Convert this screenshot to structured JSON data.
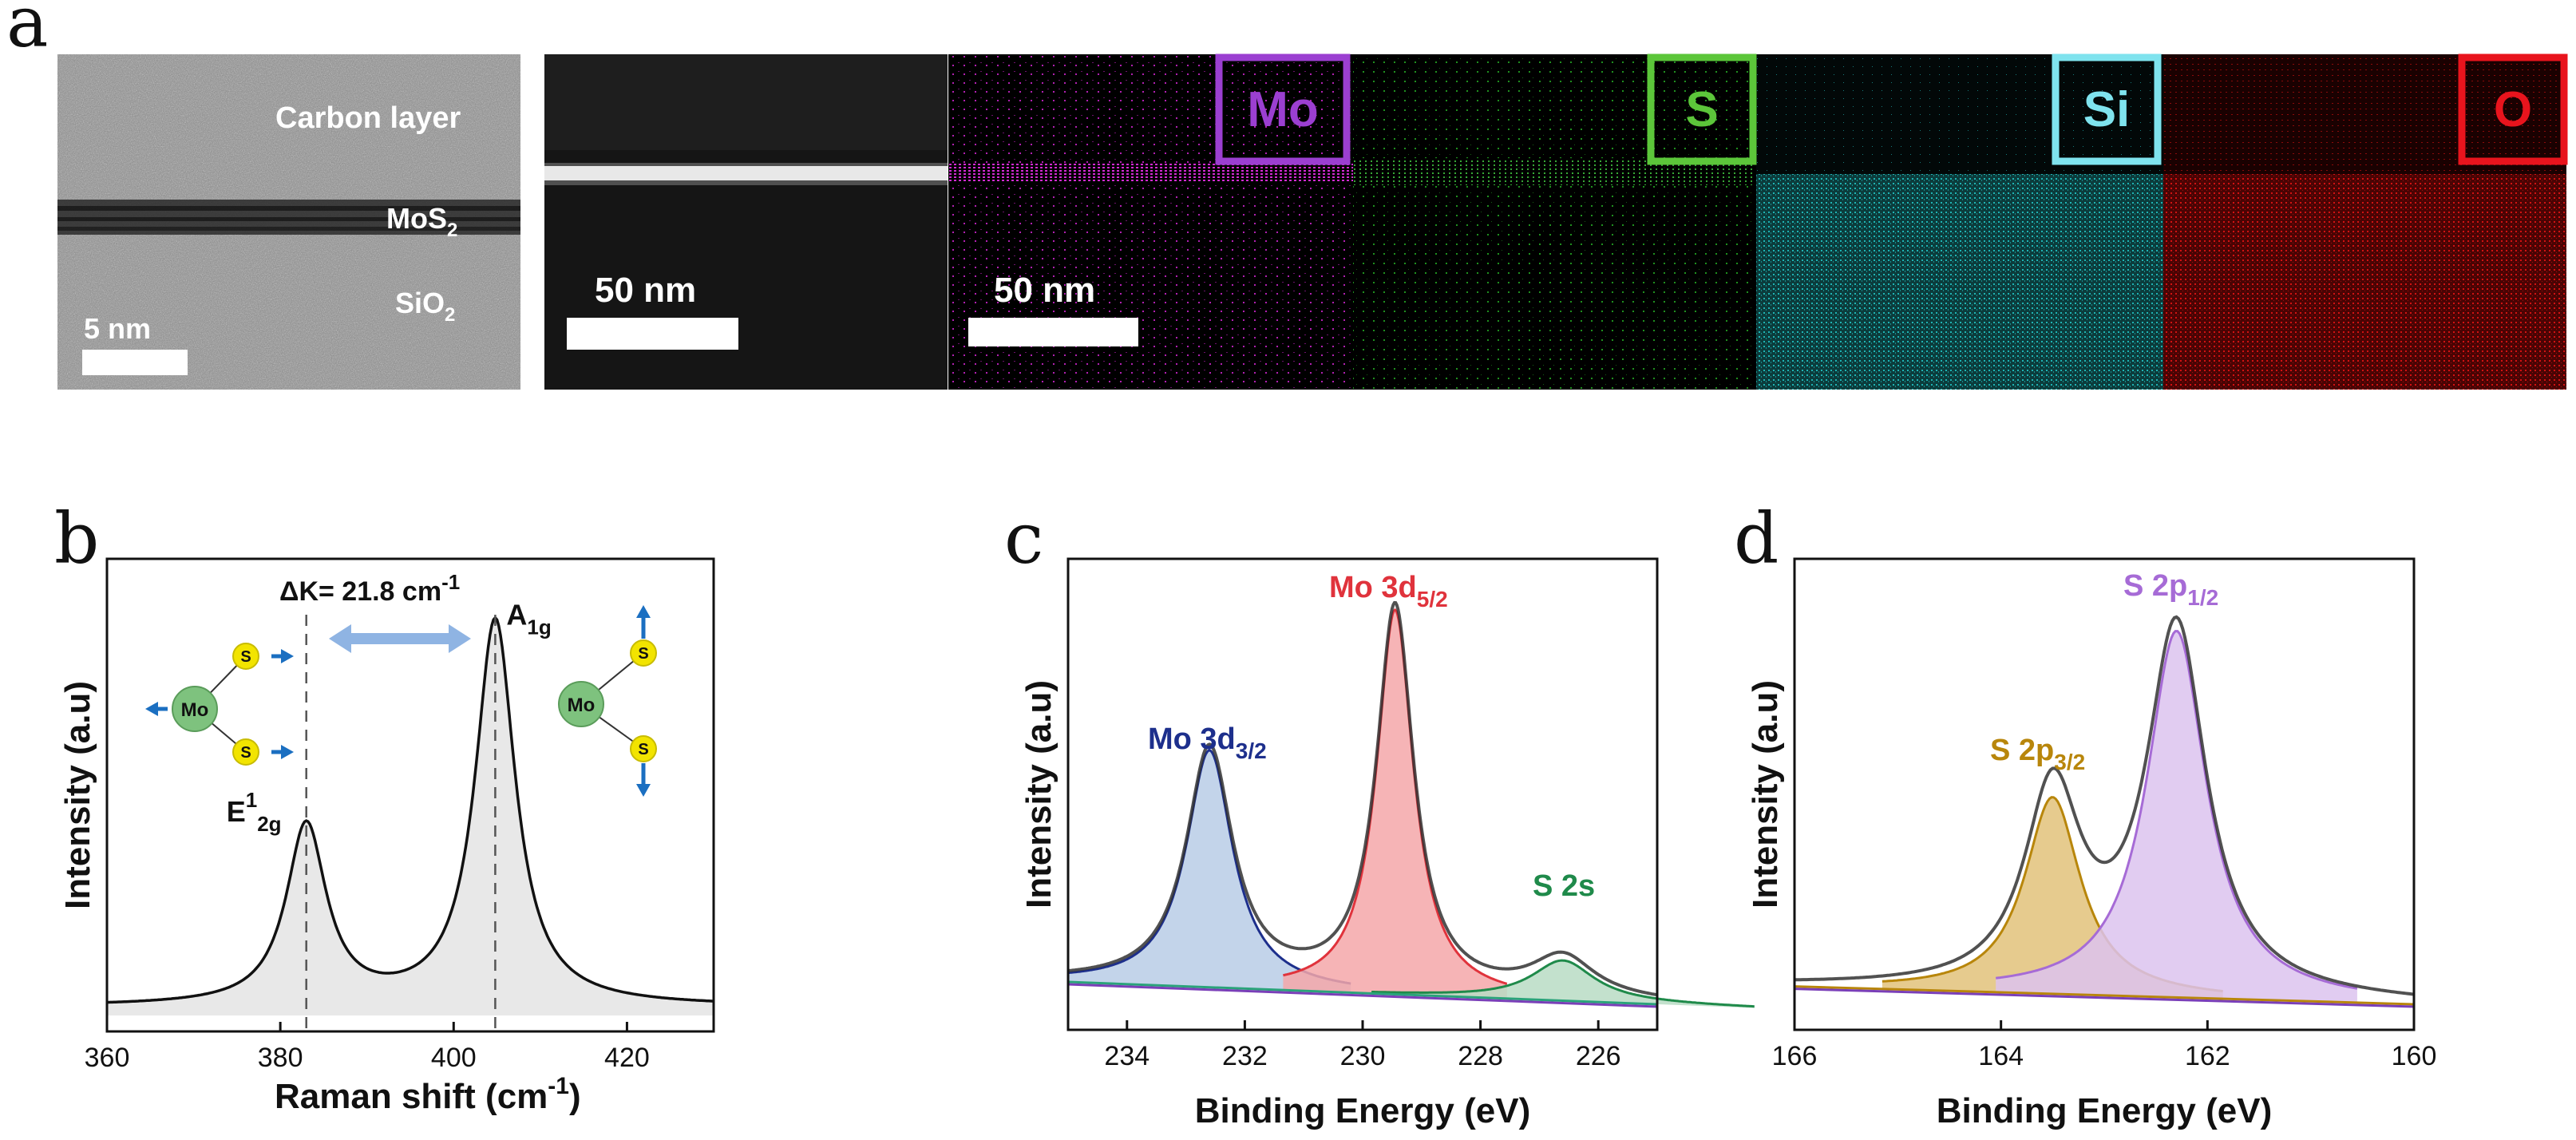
{
  "panels": {
    "a": {
      "letter": "a",
      "tem": {
        "layer_top": "Carbon layer",
        "layer_mid": "MoS",
        "layer_mid_sub": "2",
        "layer_bot": "SiO",
        "layer_bot_sub": "2",
        "scale": "5 nm"
      },
      "haadf": {
        "scale": "50 nm"
      },
      "map": {
        "scale": "50 nm"
      },
      "elements": [
        {
          "label": "Mo",
          "color": "#9b3fd1"
        },
        {
          "label": "S",
          "color": "#5cc63a"
        },
        {
          "label": "Si",
          "color": "#7fe3ee"
        },
        {
          "label": "O",
          "color": "#e8141d"
        }
      ]
    },
    "b": {
      "letter": "b"
    },
    "c": {
      "letter": "c"
    },
    "d": {
      "letter": "d"
    }
  },
  "chart_data": [
    {
      "panel": "b",
      "type": "line",
      "xlabel": "Raman shift (cm",
      "xlabel_sup": "-1",
      "xlabel_end": ")",
      "ylabel": "Intensity (a.u)",
      "xlim": [
        360,
        430
      ],
      "xticks": [
        360,
        380,
        400,
        420
      ],
      "peaks": [
        {
          "name": "E",
          "sup": "1",
          "sub": "2g",
          "position": 383,
          "height": 0.4,
          "width": 2.8
        },
        {
          "name": "A",
          "sub": "1g",
          "position": 404.8,
          "height": 0.86,
          "width": 2.8
        }
      ],
      "annotation": {
        "text": "ΔK= 21.8 cm",
        "sup": "-1"
      },
      "molecule_labels": {
        "center": "Mo",
        "ligand": "S"
      }
    },
    {
      "panel": "c",
      "type": "line",
      "xlabel": "Binding Energy (eV)",
      "ylabel": "Intensity (a.u)",
      "xlim": [
        235,
        225
      ],
      "xticks": [
        234,
        232,
        230,
        228,
        226
      ],
      "peaks": [
        {
          "name": "Mo 3d",
          "sub": "3/2",
          "position": 232.6,
          "height": 0.53,
          "width": 0.48,
          "color": "#1d2f8c",
          "fill": "#b9cde6"
        },
        {
          "name": "Mo 3d",
          "sub": "5/2",
          "position": 229.45,
          "height": 0.86,
          "width": 0.38,
          "color": "#e0333c",
          "fill": "#f4a7a9"
        },
        {
          "name": "S 2s",
          "position": 226.6,
          "height": 0.09,
          "width": 0.65,
          "color": "#1f8a4a",
          "fill": "#b9dcc4"
        }
      ]
    },
    {
      "panel": "d",
      "type": "line",
      "xlabel": "Binding Energy (eV)",
      "ylabel": "Intensity (a.u)",
      "xlim": [
        166,
        160
      ],
      "xticks": [
        166,
        164,
        162,
        160
      ],
      "peaks": [
        {
          "name": "S 2p",
          "sub": "3/2",
          "position": 163.5,
          "height": 0.44,
          "width": 0.33,
          "color": "#b8860b",
          "fill": "#e2c27a"
        },
        {
          "name": "S 2p",
          "sub": "1/2",
          "position": 162.3,
          "height": 0.82,
          "width": 0.35,
          "color": "#a66bd6",
          "fill": "#dcc3ee"
        }
      ]
    }
  ]
}
